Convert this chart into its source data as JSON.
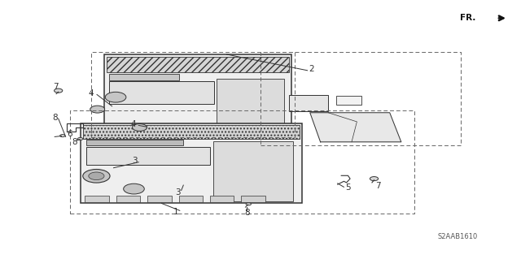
{
  "bg_color": "#ffffff",
  "line_color": "#333333",
  "dashed_color": "#666666",
  "part_number_text": "S2AAB1610",
  "fr_label": "FR.",
  "label_fontsize": 7.5,
  "small_fontsize": 6.0
}
